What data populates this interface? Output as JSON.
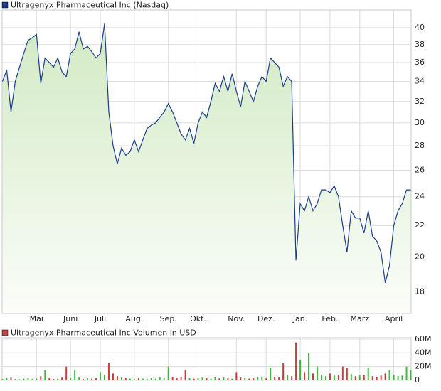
{
  "chart_data": [
    {
      "type": "area",
      "title": "Ultragenyx Pharmaceutical Inc (Nasdaq)",
      "color": "#1a3d8f",
      "fill_top": "#d2eac4",
      "fill_bottom": "#fbfdf9",
      "log_scale": true,
      "grid": true,
      "categories": [
        null,
        null,
        null,
        null,
        null,
        null,
        null,
        null,
        "Mai",
        null,
        null,
        null,
        null,
        null,
        null,
        null,
        "Juni",
        null,
        null,
        null,
        null,
        null,
        null,
        "Juli",
        null,
        null,
        null,
        null,
        null,
        null,
        null,
        "Aug.",
        null,
        null,
        null,
        null,
        null,
        null,
        null,
        "Sep.",
        null,
        null,
        null,
        null,
        null,
        null,
        "Okt.",
        null,
        null,
        null,
        null,
        null,
        null,
        null,
        null,
        "Nov.",
        null,
        null,
        null,
        null,
        null,
        null,
        "Dez.",
        null,
        null,
        null,
        null,
        null,
        null,
        null,
        "Jan.",
        null,
        null,
        null,
        null,
        null,
        null,
        "Feb.",
        null,
        null,
        null,
        null,
        null,
        null,
        "März",
        null,
        null,
        null,
        null,
        null,
        null,
        null,
        "April",
        null,
        null,
        null,
        null
      ],
      "values": [
        34,
        35.2,
        31,
        34,
        35.5,
        37,
        38.5,
        38.8,
        39.2,
        33.8,
        36.5,
        36,
        35.5,
        36.5,
        35,
        34.5,
        37,
        37.5,
        39.5,
        37.5,
        37.8,
        37.2,
        36.5,
        37,
        40.5,
        31,
        28,
        26.5,
        27.8,
        27.2,
        27.5,
        28.5,
        27.5,
        28.5,
        29.5,
        29.8,
        30,
        30.5,
        31,
        31.8,
        31,
        30,
        29,
        28.5,
        29.5,
        28.2,
        30,
        31,
        30.5,
        32,
        33.8,
        33,
        34.5,
        33,
        34.8,
        33,
        31.5,
        34,
        33,
        32,
        33.5,
        34.5,
        34,
        36.5,
        36,
        35.5,
        33.5,
        34.5,
        34,
        19.8,
        23.5,
        23,
        24,
        23,
        23.5,
        24.5,
        24.5,
        24.3,
        24.8,
        24,
        22,
        20.3,
        23,
        22.5,
        22.5,
        21.5,
        23,
        21.3,
        21,
        20.3,
        18.5,
        19.5,
        22,
        23,
        23.5,
        24.5,
        24.5
      ],
      "ylim": [
        16.9,
        42.2
      ],
      "yticks": [
        18,
        20,
        22,
        24,
        26,
        28,
        30,
        32,
        34,
        36,
        38,
        40
      ]
    },
    {
      "type": "bar",
      "title": "Ultragenyx Pharmaceutical Inc Volumen in USD",
      "up_color": "#3cb83c",
      "down_color": "#d03a3a",
      "legend_color": "#c04848",
      "grid": true,
      "values": [
        2000000,
        3000000,
        4000000,
        2000000,
        1500000,
        2500000,
        3000000,
        2000000,
        2500000,
        6000000,
        15000000,
        3000000,
        2000000,
        2500000,
        4000000,
        20000000,
        3000000,
        15000000,
        4000000,
        2000000,
        3000000,
        2500000,
        3000000,
        12000000,
        8000000,
        25000000,
        10000000,
        6000000,
        4000000,
        3000000,
        2500000,
        2000000,
        3000000,
        2500000,
        2000000,
        3000000,
        2500000,
        4000000,
        3000000,
        20000000,
        5000000,
        3000000,
        4000000,
        15000000,
        3000000,
        2500000,
        3000000,
        4000000,
        3000000,
        2500000,
        5000000,
        3000000,
        4000000,
        3000000,
        2500000,
        12000000,
        4000000,
        3000000,
        2500000,
        3000000,
        4000000,
        5000000,
        3000000,
        18000000,
        5000000,
        4000000,
        25000000,
        8000000,
        6000000,
        55000000,
        30000000,
        12000000,
        40000000,
        10000000,
        20000000,
        8000000,
        6000000,
        10000000,
        7000000,
        8000000,
        20000000,
        18000000,
        9000000,
        6000000,
        7000000,
        8000000,
        18000000,
        6000000,
        5000000,
        7000000,
        10000000,
        15000000,
        8000000,
        6000000,
        7000000,
        20000000,
        15000000
      ],
      "ylim": [
        0,
        62000000
      ],
      "yticks": [
        0,
        {
          "value": 20000000,
          "label": "20M"
        },
        {
          "value": 40000000,
          "label": "40M"
        },
        {
          "value": 60000000,
          "label": "60M"
        }
      ]
    }
  ]
}
